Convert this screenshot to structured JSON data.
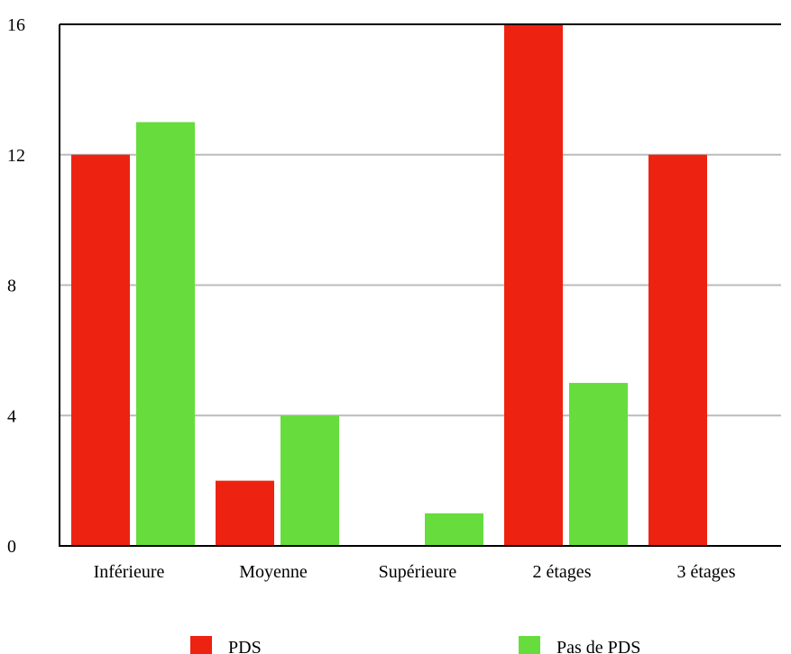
{
  "chart_data": {
    "type": "bar",
    "categories": [
      "Inférieure",
      "Moyenne",
      "Supérieure",
      "2 étages",
      "3 étages"
    ],
    "series": [
      {
        "name": "PDS",
        "color": "#ee2211",
        "values": [
          12,
          2,
          0,
          16,
          12
        ]
      },
      {
        "name": "Pas de PDS",
        "color": "#66dd3d",
        "values": [
          13,
          4,
          1,
          5,
          0
        ]
      }
    ],
    "ylim": [
      0,
      16
    ],
    "yticks": [
      0,
      4,
      8,
      12,
      16
    ],
    "grid": true,
    "gridColor": "#bbbbbb",
    "legend_position": "bottom"
  }
}
